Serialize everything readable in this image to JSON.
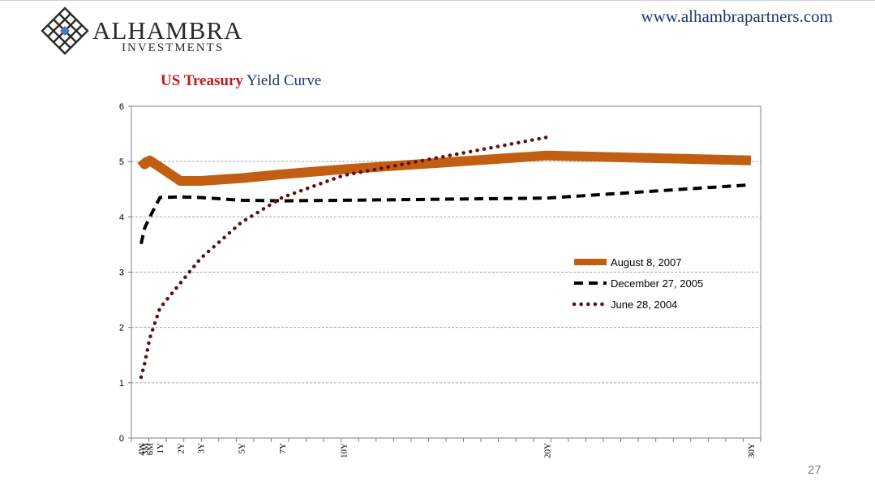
{
  "header": {
    "logo_name": "ALHAMBRA",
    "logo_sub": "INVESTMENTS",
    "website": "www.alhambrapartners.com"
  },
  "title": {
    "part1": "US Treasury",
    "part2": "Yield Curve"
  },
  "page_number": "27",
  "colors": {
    "title_red": "#c0181e",
    "title_blue": "#1f2f6e",
    "series_2007": "#c25e12",
    "series_2005": "#000000",
    "series_2004": "#5c1010",
    "url_blue": "#1f3a6b"
  },
  "chart_data": {
    "type": "line",
    "title": "US Treasury Yield Curve",
    "xlabel": "",
    "ylabel": "",
    "ylim": [
      0,
      6
    ],
    "yticks": [
      0,
      1,
      2,
      3,
      4,
      5,
      6
    ],
    "x_axis_unit": "years to maturity",
    "xlim": [
      0.0767,
      30
    ],
    "xtick_labels": [
      "4W",
      "3M",
      "6M",
      "1Y",
      "2Y",
      "3Y",
      "5Y",
      "7Y",
      "10Y",
      "20Y",
      "30Y"
    ],
    "xtick_values": [
      0.0767,
      0.25,
      0.5,
      1,
      2,
      3,
      5,
      7,
      10,
      20,
      30
    ],
    "grid": true,
    "legend_position": "right",
    "series": [
      {
        "name": "August 8, 2007",
        "style": "thick-solid",
        "color": "#c25e12",
        "x": [
          0.0767,
          0.25,
          0.5,
          1,
          2,
          3,
          5,
          7,
          10,
          20,
          30
        ],
        "values": [
          5.03,
          4.95,
          5.02,
          4.9,
          4.65,
          4.65,
          4.7,
          4.77,
          4.86,
          5.11,
          5.02
        ]
      },
      {
        "name": "December 27, 2005",
        "style": "dashed",
        "color": "#000000",
        "x": [
          0.0767,
          0.25,
          0.5,
          1,
          2,
          3,
          5,
          7,
          10,
          20,
          30
        ],
        "values": [
          3.51,
          3.8,
          3.99,
          4.35,
          4.36,
          4.35,
          4.3,
          4.29,
          4.3,
          4.34,
          4.58
        ]
      },
      {
        "name": "June 28, 2004",
        "style": "dotted",
        "color": "#5c1010",
        "x": [
          0.0767,
          0.25,
          0.5,
          1,
          2,
          3,
          5,
          7,
          10,
          20
        ],
        "values": [
          1.1,
          1.35,
          1.8,
          2.35,
          2.8,
          3.25,
          3.9,
          4.35,
          4.75,
          5.44
        ]
      }
    ]
  }
}
